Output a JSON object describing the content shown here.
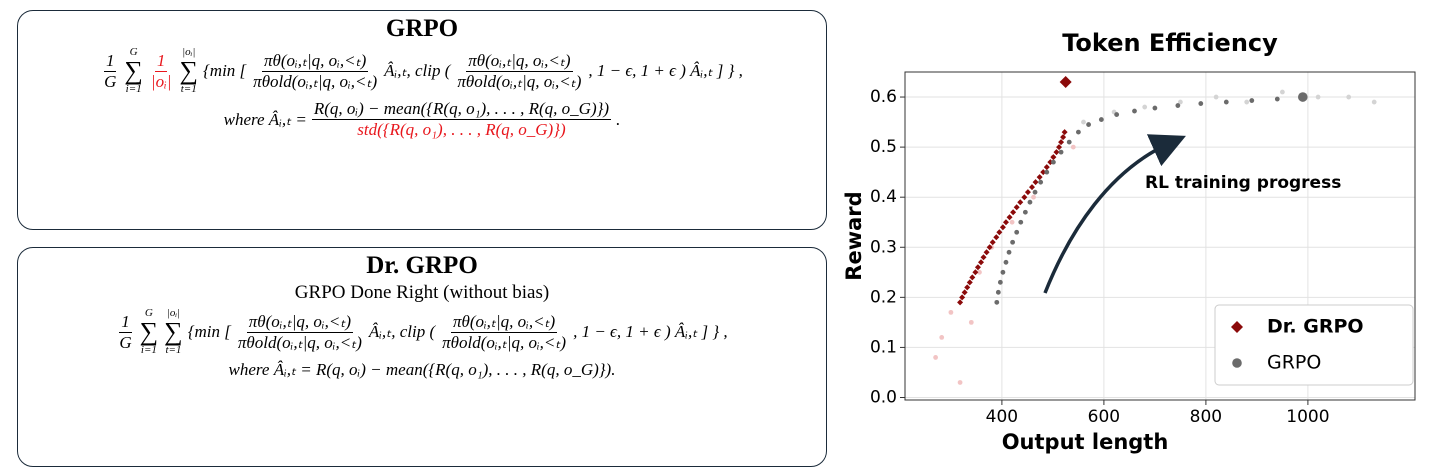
{
  "grpo": {
    "title": "GRPO",
    "lines": [
      [
        {
          "num": "1",
          "den": "G"
        },
        {
          "top": "G",
          "sign": "∑",
          "bottom": "i=1"
        },
        {
          "num": "1",
          "den": "|oᵢ|",
          "color": "#e8161c"
        },
        {
          "top": "|oᵢ|",
          "sign": "∑",
          "bottom": "t=1"
        },
        "{min [",
        {
          "num": "πθ(oᵢ,ₜ|q, oᵢ,<ₜ)",
          "den": "πθold(oᵢ,ₜ|q, oᵢ,<ₜ)"
        },
        "Âᵢ,ₜ, clip (",
        {
          "num": "πθ(oᵢ,ₜ|q, oᵢ,<ₜ)",
          "den": "πθold(oᵢ,ₜ|q, oᵢ,<ₜ)"
        },
        ", 1 − ϵ, 1 + ϵ ) Âᵢ,ₜ ] } ,"
      ],
      [
        "where Âᵢ,ₜ =",
        {
          "num": "R(q, oᵢ) − mean({R(q, o₁), . . . , R(q, o_G)})",
          "den": "std({R(q, o₁), . . . , R(q, o_G)})",
          "den_color": "#e8161c"
        },
        "."
      ]
    ]
  },
  "dr_grpo": {
    "title": "Dr. GRPO",
    "subtitle": "GRPO Done Right (without bias)",
    "lines": [
      [
        {
          "num": "1",
          "den": "G"
        },
        {
          "top": "G",
          "sign": "∑",
          "bottom": "i=1"
        },
        {
          "top": "|oᵢ|",
          "sign": "∑",
          "bottom": "t=1"
        },
        "{min [",
        {
          "num": "πθ(oᵢ,ₜ|q, oᵢ,<ₜ)",
          "den": "πθold(oᵢ,ₜ|q, oᵢ,<ₜ)"
        },
        "Âᵢ,ₜ, clip (",
        {
          "num": "πθ(oᵢ,ₜ|q, oᵢ,<ₜ)",
          "den": "πθold(oᵢ,ₜ|q, oᵢ,<ₜ)"
        },
        ", 1 − ϵ, 1 + ϵ ) Âᵢ,ₜ ] } ,"
      ],
      [
        "where Âᵢ,ₜ = R(q, oᵢ) − mean({R(q, o₁), . . . , R(q, o_G)})."
      ]
    ]
  },
  "chart_data": {
    "type": "scatter",
    "title": "Token Efficiency",
    "xlabel": "Output length",
    "ylabel": "Reward",
    "annotation": "RL training progress",
    "xlim": [
      210,
      1210
    ],
    "ylim": [
      -0.005,
      0.65
    ],
    "xticks": [
      400,
      600,
      800,
      1000
    ],
    "yticks": [
      {
        "value": 0,
        "label": "0.0"
      },
      0.1,
      0.2,
      0.3,
      0.4,
      0.5,
      0.6
    ],
    "grid": true,
    "legend": "lower right",
    "series": [
      {
        "name": "Dr. GRPO",
        "color": "#8b0a0a",
        "marker": "diamond",
        "legend_bold": true,
        "highlight_last": true,
        "x": [
          318,
          322,
          327,
          332,
          337,
          342,
          348,
          353,
          359,
          364,
          370,
          376,
          382,
          389,
          395,
          402,
          408,
          415,
          422,
          429,
          436,
          444,
          451,
          459,
          466,
          474,
          481,
          488,
          495,
          501,
          507,
          512,
          516,
          520,
          523,
          525
        ],
        "values": [
          0.19,
          0.2,
          0.21,
          0.22,
          0.23,
          0.24,
          0.25,
          0.26,
          0.27,
          0.28,
          0.29,
          0.3,
          0.31,
          0.32,
          0.33,
          0.34,
          0.35,
          0.36,
          0.37,
          0.38,
          0.39,
          0.4,
          0.41,
          0.42,
          0.43,
          0.44,
          0.45,
          0.46,
          0.47,
          0.48,
          0.49,
          0.5,
          0.51,
          0.52,
          0.53,
          0.63
        ],
        "faint_color": "#f2c4c4",
        "faint_x": [
          270,
          282,
          300,
          318,
          340,
          356,
          380,
          420,
          462,
          500,
          520,
          540
        ],
        "faint_values": [
          0.08,
          0.12,
          0.17,
          0.03,
          0.15,
          0.25,
          0.3,
          0.35,
          0.4,
          0.48,
          0.52,
          0.5
        ]
      },
      {
        "name": "GRPO",
        "color": "#6b6b6b",
        "marker": "circle",
        "legend_bold": false,
        "highlight_last": true,
        "x": [
          390,
          393,
          397,
          402,
          408,
          414,
          421,
          429,
          437,
          446,
          455,
          465,
          476,
          488,
          501,
          516,
          532,
          550,
          570,
          595,
          625,
          660,
          700,
          745,
          790,
          840,
          890,
          940,
          990
        ],
        "values": [
          0.19,
          0.21,
          0.23,
          0.25,
          0.27,
          0.29,
          0.31,
          0.33,
          0.35,
          0.37,
          0.39,
          0.41,
          0.43,
          0.45,
          0.47,
          0.49,
          0.51,
          0.53,
          0.545,
          0.555,
          0.565,
          0.572,
          0.578,
          0.583,
          0.587,
          0.59,
          0.593,
          0.596,
          0.6
        ],
        "faint_color": "#d4d4d4",
        "faint_x": [
          560,
          620,
          680,
          750,
          820,
          880,
          950,
          1020,
          1080,
          1130
        ],
        "faint_values": [
          0.55,
          0.57,
          0.58,
          0.59,
          0.6,
          0.59,
          0.61,
          0.6,
          0.6,
          0.59
        ]
      }
    ]
  }
}
